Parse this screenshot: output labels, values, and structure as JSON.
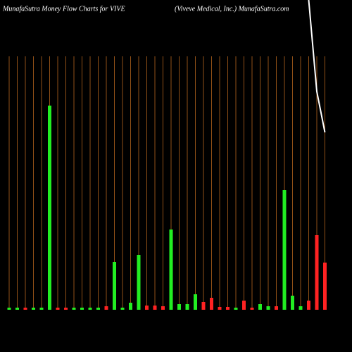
{
  "chart_data": {
    "type": "bar",
    "title": "MunafaSutra  Money Flow  Charts for VIVE",
    "subtitle": "(Viveve  Medical,  Inc.) MunafaSutra.com",
    "categories": [
      null,
      null,
      null,
      null,
      null,
      null,
      null,
      null,
      null,
      null,
      null,
      null,
      null,
      null,
      null,
      null,
      null,
      null,
      null,
      null,
      null,
      null,
      null,
      null,
      null,
      null,
      null,
      null,
      null,
      null,
      null,
      null,
      null,
      null,
      null,
      null,
      null,
      null,
      null,
      null
    ],
    "values": [
      3,
      3,
      3,
      3,
      3,
      290,
      3,
      3,
      3,
      3,
      3,
      3,
      5,
      68,
      3,
      10,
      78,
      6,
      6,
      5,
      114,
      8,
      8,
      22,
      11,
      17,
      4,
      4,
      3,
      13,
      3,
      8,
      5,
      5,
      170,
      20,
      5,
      13,
      106,
      67
    ],
    "colors": [
      "#22ee22",
      "#22ee22",
      "#ff2222",
      "#22ee22",
      "#22ee22",
      "#22ee22",
      "#ff2222",
      "#ff2222",
      "#22ee22",
      "#22ee22",
      "#22ee22",
      "#22ee22",
      "#ff2222",
      "#22ee22",
      "#22ee22",
      "#22ee22",
      "#22ee22",
      "#ff2222",
      "#ff2222",
      "#ff2222",
      "#22ee22",
      "#22ee22",
      "#22ee22",
      "#22ee22",
      "#ff2222",
      "#ff2222",
      "#ff2222",
      "#ff2222",
      "#22ee22",
      "#ff2222",
      "#ff2222",
      "#22ee22",
      "#22ee22",
      "#ff2222",
      "#22ee22",
      "#22ee22",
      "#22ee22",
      "#ff2222",
      "#ff2222",
      "#ff2222"
    ],
    "line": {
      "color": "#ffffff",
      "values": [
        null,
        null,
        null,
        null,
        null,
        null,
        null,
        null,
        null,
        null,
        null,
        null,
        null,
        null,
        null,
        null,
        null,
        null,
        null,
        null,
        null,
        null,
        null,
        null,
        null,
        null,
        null,
        null,
        null,
        null,
        null,
        null,
        null,
        null,
        null,
        null,
        null,
        440,
        310,
        252
      ]
    },
    "ylim": [
      0,
      440
    ],
    "grid_color": "#b5651d"
  }
}
